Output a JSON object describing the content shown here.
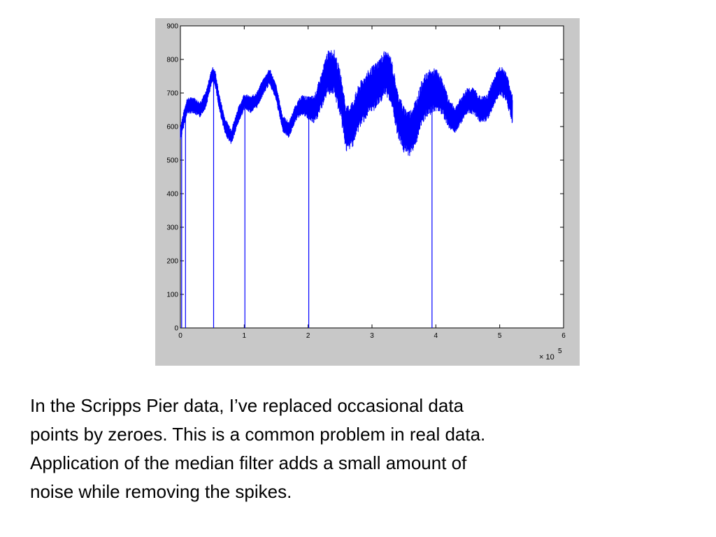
{
  "chart_data": {
    "type": "line",
    "title": "",
    "xlabel": "",
    "ylabel": "",
    "x_multiplier_label": "× 10",
    "x_multiplier_exponent": "5",
    "xlim": [
      0,
      6
    ],
    "ylim": [
      0,
      900
    ],
    "xticks": [
      0,
      1,
      2,
      3,
      4,
      5,
      6
    ],
    "yticks": [
      0,
      100,
      200,
      300,
      400,
      500,
      600,
      700,
      800,
      900
    ],
    "grid": false,
    "series_color": "#0000ff",
    "series": [
      {
        "x": [
          0.0,
          0.1,
          0.2,
          0.3,
          0.4,
          0.45,
          0.5,
          0.55,
          0.6,
          0.7,
          0.8,
          0.9,
          1.0,
          1.1,
          1.2,
          1.3,
          1.4,
          1.5,
          1.6,
          1.7,
          1.8,
          1.9,
          2.0,
          2.1,
          2.2,
          2.3,
          2.4,
          2.5,
          2.6,
          2.7,
          2.8,
          2.9,
          3.0,
          3.1,
          3.2,
          3.3,
          3.4,
          3.5,
          3.6,
          3.7,
          3.8,
          3.9,
          4.0,
          4.1,
          4.2,
          4.3,
          4.4,
          4.5,
          4.6,
          4.7,
          4.8,
          4.9,
          5.0,
          5.1,
          5.2
        ],
        "center": [
          580,
          660,
          665,
          650,
          680,
          720,
          755,
          740,
          680,
          600,
          570,
          630,
          675,
          665,
          680,
          720,
          750,
          700,
          610,
          590,
          640,
          665,
          655,
          650,
          700,
          760,
          765,
          700,
          590,
          610,
          660,
          690,
          710,
          730,
          760,
          740,
          640,
          590,
          580,
          620,
          680,
          700,
          710,
          690,
          640,
          620,
          650,
          680,
          675,
          650,
          655,
          700,
          740,
          720,
          650
        ],
        "amplitude": [
          25,
          25,
          25,
          25,
          25,
          25,
          25,
          25,
          25,
          25,
          25,
          25,
          25,
          25,
          25,
          25,
          25,
          25,
          25,
          25,
          25,
          30,
          35,
          45,
          55,
          65,
          70,
          70,
          70,
          70,
          70,
          70,
          70,
          70,
          70,
          70,
          70,
          70,
          70,
          70,
          70,
          70,
          65,
          55,
          45,
          40,
          40,
          40,
          40,
          40,
          40,
          45,
          45,
          45,
          45
        ]
      }
    ],
    "spikes_to_zero_x": [
      0.02,
      0.08,
      0.52,
      1.01,
      2.01,
      3.94
    ]
  },
  "caption": {
    "line1": "In the Scripps Pier data, I’ve replaced occasional data",
    "line2": "points by zeroes. This is a common problem in real data.",
    "line3": "Application of the median filter adds a small amount of",
    "line4": "noise while removing the spikes."
  }
}
